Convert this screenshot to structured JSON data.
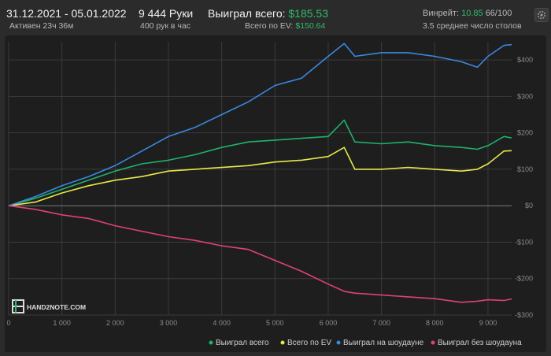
{
  "header": {
    "date_range": "31.12.2021 - 05.01.2022",
    "active": "Активен 23ч 36м",
    "hands": "9 444 Руки",
    "hands_rate": "400 рук в час",
    "won_label": "Выиграл всего:",
    "won_value": "$185.53",
    "ev_label": "Всего по EV:",
    "ev_value": "$150.64",
    "winrate_label": "Винрейт:",
    "winrate_value": "10.85",
    "winrate_suffix": "66/100",
    "tables": "3.5 среднее число столов",
    "settings_icon": "gear-icon"
  },
  "watermark": {
    "text": "HAND2NOTE.COM"
  },
  "chart_data": {
    "type": "line",
    "xlabel": "",
    "ylabel": "",
    "xlim": [
      0,
      9444
    ],
    "ylim": [
      -300,
      450
    ],
    "x_ticks": [
      0,
      1000,
      2000,
      3000,
      4000,
      5000,
      6000,
      7000,
      8000,
      9000
    ],
    "x_tick_labels": [
      "0",
      "1 000",
      "2 000",
      "3 000",
      "4 000",
      "5 000",
      "6 000",
      "7 000",
      "8 000",
      "9 000"
    ],
    "y_ticks": [
      -300,
      -200,
      -100,
      0,
      100,
      200,
      300,
      400
    ],
    "y_tick_labels": [
      "-$300",
      "-$200",
      "-$100",
      "$0",
      "$100",
      "$200",
      "$300",
      "$400"
    ],
    "grid": true,
    "legend_position": "bottom-right",
    "x": [
      0,
      500,
      1000,
      1500,
      2000,
      2500,
      3000,
      3500,
      4000,
      4500,
      5000,
      5500,
      6000,
      6300,
      6500,
      7000,
      7500,
      8000,
      8500,
      8800,
      9000,
      9300,
      9444
    ],
    "series": [
      {
        "name": "Выиграл всего",
        "color": "#1db36a",
        "values": [
          0,
          20,
          45,
          70,
          95,
          115,
          125,
          140,
          160,
          175,
          180,
          185,
          190,
          235,
          175,
          170,
          175,
          165,
          160,
          155,
          165,
          190,
          186
        ]
      },
      {
        "name": "Всего по EV",
        "color": "#e8e84a",
        "values": [
          0,
          10,
          35,
          55,
          70,
          80,
          95,
          100,
          105,
          110,
          120,
          125,
          135,
          160,
          100,
          100,
          105,
          100,
          95,
          100,
          115,
          150,
          151
        ]
      },
      {
        "name": "Выиграл на шоудауне",
        "color": "#3a88e0",
        "values": [
          0,
          25,
          55,
          80,
          110,
          150,
          190,
          215,
          250,
          285,
          330,
          350,
          410,
          445,
          410,
          420,
          420,
          410,
          395,
          380,
          410,
          440,
          442
        ]
      },
      {
        "name": "Выиграл без шоудауна",
        "color": "#e0407a",
        "values": [
          0,
          -10,
          -25,
          -35,
          -55,
          -70,
          -85,
          -95,
          -110,
          -120,
          -150,
          -180,
          -215,
          -235,
          -240,
          -245,
          -250,
          -255,
          -265,
          -262,
          -258,
          -260,
          -256
        ]
      }
    ]
  }
}
